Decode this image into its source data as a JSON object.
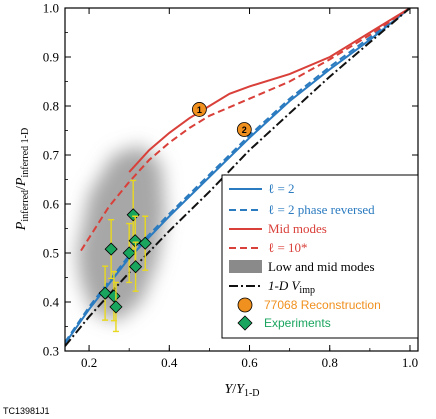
{
  "chart_data": {
    "type": "line",
    "xlabel_main": "Y",
    "xlabel_sub": "1-D",
    "ylabel": "P",
    "ylabel_num_sub": "inferred",
    "ylabel_den_sub": "inferred 1-D",
    "xlim": [
      0.14,
      1.02
    ],
    "ylim": [
      0.3,
      1.0
    ],
    "xticks": [
      "0.2",
      "0.4",
      "0.6",
      "0.8",
      "1.0"
    ],
    "yticks": [
      "0.3",
      "0.4",
      "0.5",
      "0.6",
      "0.7",
      "0.8",
      "0.9",
      "1.0"
    ],
    "grid": false,
    "legend_position": "lower-right",
    "series": [
      {
        "name": "ℓ = 2",
        "color": "#2b7bc0",
        "dash": "solid",
        "x": [
          0.14,
          0.2,
          0.3,
          0.4,
          0.5,
          0.6,
          0.7,
          0.8,
          0.9,
          1.0
        ],
        "y": [
          0.315,
          0.385,
          0.49,
          0.575,
          0.655,
          0.735,
          0.81,
          0.875,
          0.935,
          1.0
        ]
      },
      {
        "name": "ℓ = 2 phase reversed",
        "color": "#2b7bc0",
        "dash": "dashed",
        "x": [
          0.14,
          0.2,
          0.3,
          0.4,
          0.5,
          0.6,
          0.7,
          0.8,
          0.9,
          1.0
        ],
        "y": [
          0.318,
          0.39,
          0.495,
          0.58,
          0.66,
          0.74,
          0.815,
          0.88,
          0.94,
          1.0
        ]
      },
      {
        "name": "Mid modes",
        "color": "#d9403a",
        "dash": "solid",
        "x": [
          0.3,
          0.35,
          0.4,
          0.45,
          0.5,
          0.55,
          0.6,
          0.7,
          0.8,
          0.9,
          1.0
        ],
        "y": [
          0.665,
          0.71,
          0.745,
          0.775,
          0.8,
          0.825,
          0.84,
          0.865,
          0.9,
          0.95,
          1.0
        ]
      },
      {
        "name": "ℓ = 10*",
        "color": "#d9403a",
        "dash": "dashed",
        "x": [
          0.18,
          0.25,
          0.3,
          0.35,
          0.4,
          0.45,
          0.5,
          0.6,
          0.7,
          0.8,
          0.9,
          1.0
        ],
        "y": [
          0.505,
          0.595,
          0.645,
          0.69,
          0.725,
          0.755,
          0.78,
          0.815,
          0.85,
          0.895,
          0.945,
          1.0
        ]
      },
      {
        "name": "1-D V",
        "name_sub": "imp",
        "color": "#111111",
        "dash": "dashdot",
        "x": [
          0.14,
          0.2,
          0.3,
          0.4,
          0.5,
          0.6,
          0.7,
          0.8,
          0.9,
          1.0
        ],
        "y": [
          0.31,
          0.37,
          0.46,
          0.545,
          0.625,
          0.71,
          0.785,
          0.86,
          0.93,
          1.0
        ]
      }
    ],
    "band": {
      "name": "Low and mid modes",
      "color": "#8a8a8a"
    },
    "reconstruction": {
      "name": "77068 Reconstruction",
      "color": "#f0901e",
      "points": [
        {
          "x": 0.475,
          "y": 0.793,
          "label": "1"
        },
        {
          "x": 0.587,
          "y": 0.752,
          "label": "2"
        }
      ]
    },
    "experiments": {
      "name": "Experiments",
      "color": "#1aa55f",
      "errorbar_color": "#e8d81e",
      "points": [
        {
          "x": 0.31,
          "y": 0.578,
          "err": 0.07
        },
        {
          "x": 0.255,
          "y": 0.508,
          "err": 0.06
        },
        {
          "x": 0.3,
          "y": 0.5,
          "err": 0.06
        },
        {
          "x": 0.315,
          "y": 0.525,
          "err": 0.05
        },
        {
          "x": 0.34,
          "y": 0.52,
          "err": 0.055
        },
        {
          "x": 0.316,
          "y": 0.472,
          "err": 0.05
        },
        {
          "x": 0.24,
          "y": 0.418,
          "err": 0.055
        },
        {
          "x": 0.262,
          "y": 0.412,
          "err": 0.05
        },
        {
          "x": 0.267,
          "y": 0.39,
          "err": 0.05
        }
      ]
    }
  },
  "figure_id": "TC13981J1"
}
